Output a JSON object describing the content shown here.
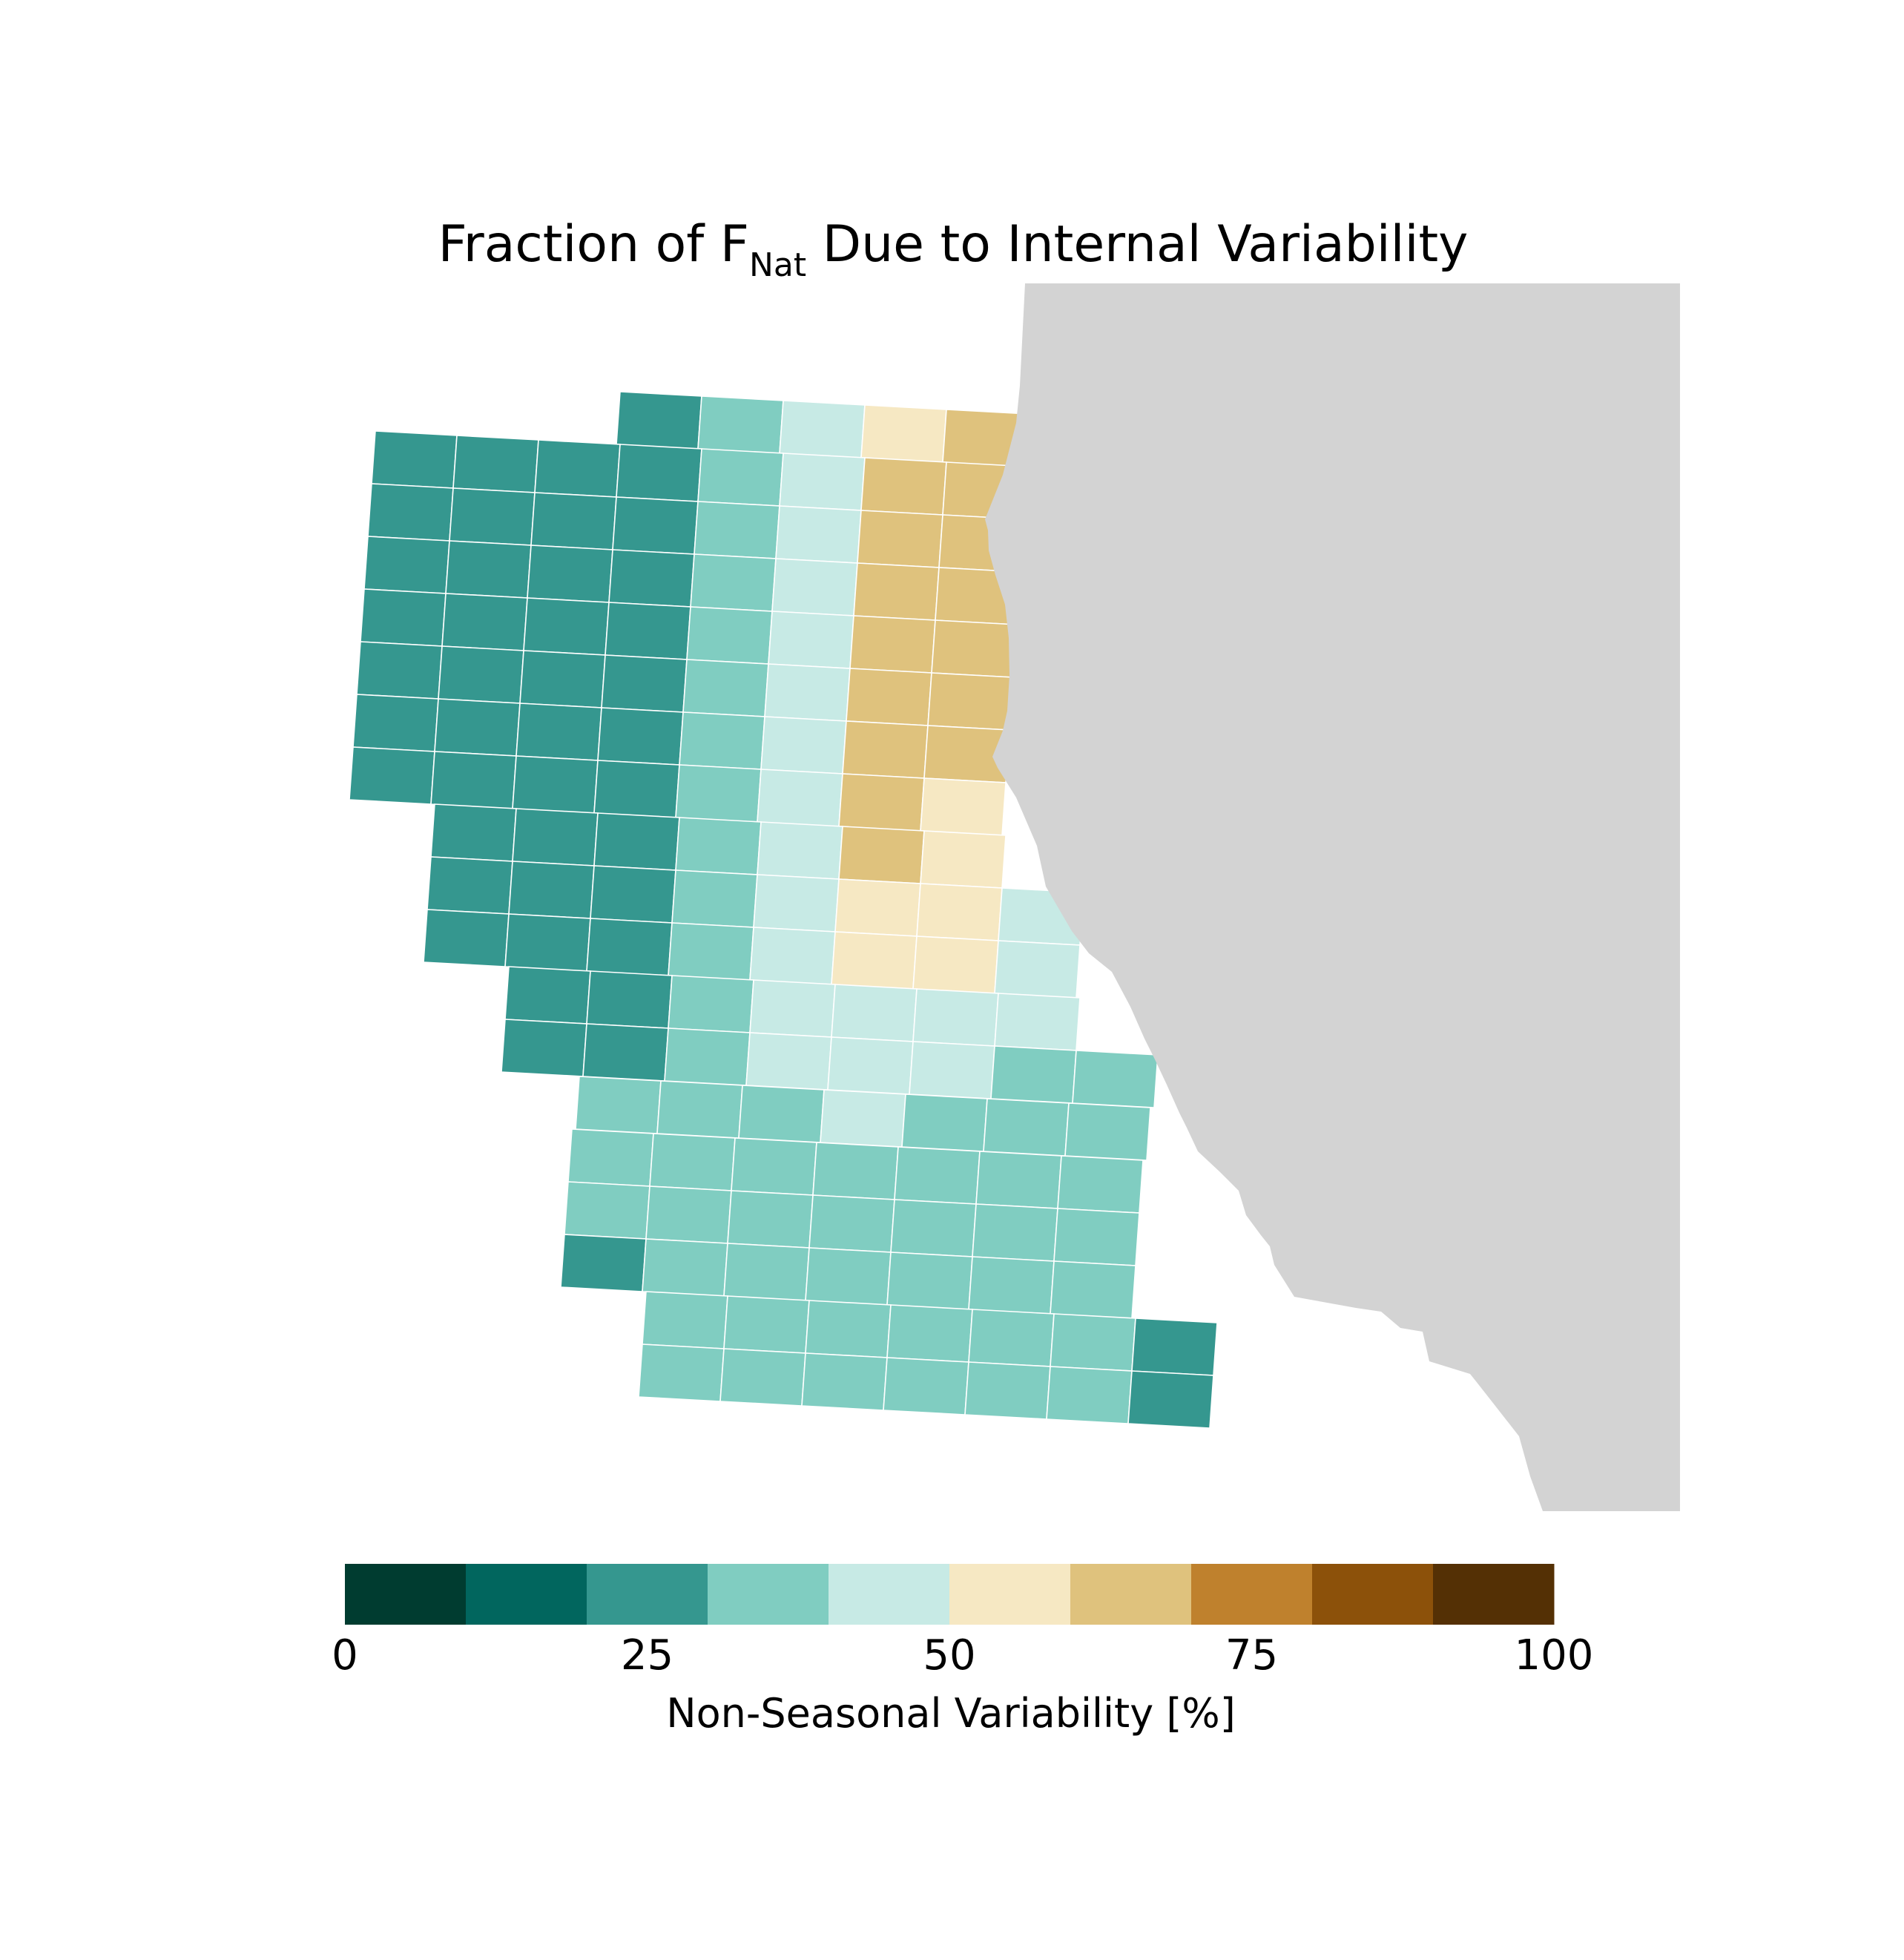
{
  "figure": {
    "title_main": "Fraction of F",
    "title_subscript": "Nat",
    "title_rest": " Due to Internal Variability"
  },
  "map": {
    "land_color": "#d3d3d3",
    "grid_line_color": "#ffffff",
    "value_unit": "%",
    "grid_rows": [
      {
        "row": 0,
        "values": [
          null,
          null,
          null,
          20,
          35,
          45,
          55,
          65,
          null,
          null,
          null
        ]
      },
      {
        "row": 1,
        "values": [
          20,
          20,
          20,
          20,
          35,
          45,
          65,
          65,
          null,
          null,
          null
        ]
      },
      {
        "row": 2,
        "values": [
          20,
          20,
          20,
          20,
          35,
          45,
          65,
          65,
          null,
          null,
          null
        ]
      },
      {
        "row": 3,
        "values": [
          20,
          20,
          20,
          20,
          35,
          45,
          65,
          65,
          null,
          null,
          null
        ]
      },
      {
        "row": 4,
        "values": [
          20,
          20,
          20,
          20,
          35,
          45,
          65,
          65,
          null,
          null,
          null
        ]
      },
      {
        "row": 5,
        "values": [
          20,
          20,
          20,
          20,
          35,
          45,
          65,
          65,
          null,
          null,
          null
        ]
      },
      {
        "row": 6,
        "values": [
          20,
          20,
          20,
          20,
          35,
          45,
          65,
          65,
          null,
          null,
          null
        ]
      },
      {
        "row": 7,
        "values": [
          20,
          20,
          20,
          20,
          35,
          45,
          65,
          55,
          null,
          null,
          null
        ]
      },
      {
        "row": 8,
        "values": [
          null,
          20,
          20,
          20,
          35,
          45,
          65,
          55,
          null,
          null,
          null
        ]
      },
      {
        "row": 9,
        "values": [
          null,
          20,
          20,
          20,
          35,
          45,
          55,
          55,
          45,
          null,
          null
        ]
      },
      {
        "row": 10,
        "values": [
          null,
          20,
          20,
          20,
          35,
          45,
          55,
          55,
          45,
          null,
          null
        ]
      },
      {
        "row": 11,
        "values": [
          null,
          null,
          20,
          20,
          35,
          45,
          45,
          45,
          45,
          null,
          null
        ]
      },
      {
        "row": 12,
        "values": [
          null,
          null,
          20,
          20,
          35,
          45,
          45,
          45,
          35,
          35,
          null
        ]
      },
      {
        "row": 13,
        "values": [
          null,
          null,
          null,
          35,
          35,
          35,
          45,
          35,
          35,
          35,
          null
        ]
      },
      {
        "row": 14,
        "values": [
          null,
          null,
          null,
          35,
          35,
          35,
          35,
          35,
          35,
          35,
          null
        ]
      },
      {
        "row": 15,
        "values": [
          null,
          null,
          null,
          35,
          35,
          35,
          35,
          35,
          35,
          35,
          null
        ]
      },
      {
        "row": 16,
        "values": [
          null,
          null,
          null,
          20,
          35,
          35,
          35,
          35,
          35,
          35,
          null
        ]
      },
      {
        "row": 17,
        "values": [
          null,
          null,
          null,
          null,
          35,
          35,
          35,
          35,
          35,
          35,
          20
        ]
      },
      {
        "row": 18,
        "values": [
          null,
          null,
          null,
          null,
          35,
          35,
          35,
          35,
          35,
          35,
          20
        ]
      }
    ]
  },
  "colorbar": {
    "ticks": [
      "0",
      "25",
      "50",
      "75",
      "100"
    ],
    "tick_values": [
      0,
      25,
      50,
      75,
      100
    ],
    "label": "Non-Seasonal Variability [%]",
    "range": [
      0,
      100
    ],
    "bins": [
      {
        "min": 0,
        "max": 10,
        "color": "#003c30"
      },
      {
        "min": 10,
        "max": 20,
        "color": "#01665e"
      },
      {
        "min": 20,
        "max": 30,
        "color": "#35978f"
      },
      {
        "min": 30,
        "max": 40,
        "color": "#80cdc1"
      },
      {
        "min": 40,
        "max": 50,
        "color": "#c7eae5"
      },
      {
        "min": 50,
        "max": 60,
        "color": "#f6e8c3"
      },
      {
        "min": 60,
        "max": 70,
        "color": "#dfc27d"
      },
      {
        "min": 70,
        "max": 80,
        "color": "#bf812d"
      },
      {
        "min": 80,
        "max": 90,
        "color": "#8c510a"
      },
      {
        "min": 90,
        "max": 100,
        "color": "#543005"
      }
    ]
  }
}
